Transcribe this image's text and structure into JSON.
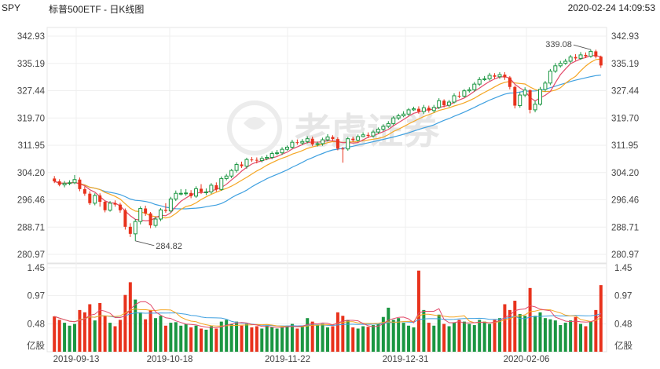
{
  "header": {
    "symbol": "SPY",
    "title": "标普500ETF - 日K线图",
    "timestamp": "2020-02-24 14:09:53"
  },
  "watermark": "老虎证券",
  "chart_data": {
    "type": "candlestick",
    "price_axis": {
      "ticks": [
        "342.93",
        "335.19",
        "327.44",
        "319.70",
        "311.95",
        "304.20",
        "296.46",
        "288.71",
        "280.97"
      ],
      "range": [
        280.97,
        342.93
      ]
    },
    "volume_axis": {
      "ticks": [
        "1.45",
        "0.97",
        "0.48"
      ],
      "unit": "亿股",
      "range": [
        0,
        1.45
      ]
    },
    "x_axis": {
      "labels": [
        "2019-09-13",
        "2019-10-18",
        "2019-11-22",
        "2019-12-31",
        "2020-02-06"
      ]
    },
    "annotations": {
      "high": "339.08",
      "low": "284.82"
    },
    "colors": {
      "up": "#1a9641",
      "down": "#e8321c",
      "ma5": "#e24a6a",
      "ma10": "#f5a623",
      "ma20": "#3fa0e0"
    },
    "candles": [
      [
        302.5,
        301.7,
        303.2,
        301.2,
        0.61
      ],
      [
        301.7,
        300.7,
        302.3,
        300.3,
        0.55
      ],
      [
        300.7,
        301.1,
        301.8,
        300.0,
        0.5
      ],
      [
        301.1,
        301.3,
        302.0,
        300.6,
        0.45
      ],
      [
        301.3,
        302.2,
        303.5,
        300.9,
        0.48
      ],
      [
        302.2,
        299.5,
        302.8,
        298.9,
        0.72
      ],
      [
        299.5,
        298.2,
        300.3,
        297.6,
        0.68
      ],
      [
        298.2,
        295.5,
        298.9,
        295.0,
        0.82
      ],
      [
        295.5,
        297.7,
        298.3,
        294.9,
        0.54
      ],
      [
        297.7,
        295.9,
        298.3,
        294.5,
        0.84
      ],
      [
        295.9,
        293.5,
        296.2,
        292.9,
        0.62
      ],
      [
        293.5,
        295.5,
        296.1,
        293.1,
        0.5
      ],
      [
        295.5,
        295.1,
        296.3,
        294.5,
        0.44
      ],
      [
        295.1,
        293.5,
        295.6,
        292.8,
        0.55
      ],
      [
        293.5,
        288.8,
        294.0,
        288.0,
        0.98
      ],
      [
        288.8,
        286.8,
        289.8,
        285.9,
        1.2
      ],
      [
        286.8,
        290.3,
        291.0,
        284.8,
        0.9
      ],
      [
        290.3,
        294.0,
        294.6,
        289.5,
        0.68
      ],
      [
        294.0,
        292.6,
        294.8,
        291.9,
        0.56
      ],
      [
        292.6,
        289.2,
        293.0,
        288.4,
        0.72
      ],
      [
        289.2,
        291.0,
        291.6,
        288.6,
        0.58
      ],
      [
        291.0,
        293.6,
        294.1,
        290.4,
        0.62
      ],
      [
        293.6,
        293.3,
        295.5,
        292.8,
        0.45
      ],
      [
        293.3,
        296.7,
        297.3,
        292.8,
        0.5
      ],
      [
        296.7,
        298.3,
        299.1,
        296.1,
        0.51
      ],
      [
        298.3,
        298.3,
        299.5,
        297.7,
        0.45
      ],
      [
        298.3,
        298.4,
        299.5,
        297.6,
        0.48
      ],
      [
        298.4,
        297.5,
        299.2,
        296.9,
        0.42
      ],
      [
        297.5,
        299.6,
        300.3,
        297.0,
        0.45
      ],
      [
        299.6,
        298.7,
        300.9,
        298.1,
        0.4
      ],
      [
        298.7,
        298.7,
        299.7,
        297.8,
        0.38
      ],
      [
        298.7,
        300.6,
        301.2,
        298.1,
        0.44
      ],
      [
        300.6,
        299.4,
        301.4,
        298.8,
        0.4
      ],
      [
        299.4,
        302.5,
        303.1,
        299.0,
        0.52
      ],
      [
        302.5,
        303.2,
        303.8,
        302.0,
        0.55
      ],
      [
        303.2,
        304.8,
        305.2,
        302.6,
        0.48
      ],
      [
        304.8,
        306.5,
        307.1,
        304.2,
        0.52
      ],
      [
        306.5,
        306.0,
        307.3,
        305.5,
        0.45
      ],
      [
        306.0,
        307.9,
        308.4,
        305.3,
        0.48
      ],
      [
        307.9,
        307.8,
        308.6,
        307.2,
        0.42
      ],
      [
        307.8,
        307.6,
        308.5,
        306.8,
        0.44
      ],
      [
        307.6,
        308.2,
        308.8,
        307.1,
        0.4
      ],
      [
        308.2,
        308.5,
        309.2,
        307.7,
        0.45
      ],
      [
        308.5,
        309.6,
        310.2,
        308.0,
        0.42
      ],
      [
        309.6,
        309.8,
        310.6,
        309.1,
        0.4
      ],
      [
        309.8,
        310.8,
        311.4,
        309.2,
        0.43
      ],
      [
        310.8,
        311.4,
        311.9,
        310.4,
        0.45
      ],
      [
        311.4,
        312.8,
        313.5,
        310.9,
        0.48
      ],
      [
        312.8,
        312.6,
        313.6,
        312.1,
        0.4
      ],
      [
        312.6,
        313.0,
        313.7,
        312.0,
        0.44
      ],
      [
        313.0,
        313.8,
        314.5,
        312.5,
        0.58
      ],
      [
        313.8,
        312.2,
        314.4,
        311.7,
        0.52
      ],
      [
        312.2,
        312.4,
        313.0,
        311.6,
        0.46
      ],
      [
        312.4,
        313.5,
        314.1,
        311.8,
        0.48
      ],
      [
        313.5,
        314.3,
        315.1,
        313.0,
        0.42
      ],
      [
        314.3,
        313.7,
        314.8,
        313.2,
        0.44
      ],
      [
        313.7,
        311.0,
        314.2,
        310.5,
        0.68
      ],
      [
        311.0,
        310.9,
        311.5,
        307.0,
        0.62
      ],
      [
        310.9,
        313.8,
        314.3,
        310.4,
        0.55
      ],
      [
        313.8,
        313.4,
        314.4,
        312.9,
        0.42
      ],
      [
        313.4,
        314.4,
        315.0,
        313.0,
        0.4
      ],
      [
        314.4,
        314.9,
        315.6,
        314.2,
        0.44
      ],
      [
        314.9,
        314.6,
        315.6,
        314.0,
        0.43
      ],
      [
        314.6,
        315.7,
        316.3,
        314.1,
        0.46
      ],
      [
        315.7,
        316.5,
        317.0,
        315.2,
        0.48
      ],
      [
        316.5,
        317.3,
        317.9,
        316.0,
        0.6
      ],
      [
        317.3,
        318.1,
        318.8,
        316.8,
        0.76
      ],
      [
        318.1,
        319.7,
        320.2,
        317.6,
        0.55
      ],
      [
        319.7,
        320.3,
        320.9,
        319.1,
        0.58
      ],
      [
        320.3,
        320.8,
        321.6,
        319.9,
        0.5
      ],
      [
        320.8,
        322.0,
        322.5,
        320.3,
        0.45
      ],
      [
        322.0,
        322.3,
        322.9,
        321.7,
        0.42
      ],
      [
        322.3,
        321.5,
        323.0,
        320.9,
        1.4
      ],
      [
        321.5,
        322.6,
        323.4,
        320.8,
        0.72
      ],
      [
        322.6,
        321.8,
        323.2,
        321.2,
        0.5
      ],
      [
        321.8,
        322.7,
        323.4,
        321.2,
        0.45
      ],
      [
        322.7,
        324.6,
        325.3,
        322.2,
        0.64
      ],
      [
        324.6,
        323.3,
        325.0,
        322.7,
        0.48
      ],
      [
        323.3,
        324.2,
        324.8,
        322.8,
        0.44
      ],
      [
        324.2,
        326.0,
        326.7,
        323.8,
        0.5
      ],
      [
        326.0,
        325.9,
        327.2,
        325.3,
        0.55
      ],
      [
        325.9,
        327.4,
        327.9,
        325.5,
        0.52
      ],
      [
        327.4,
        327.7,
        328.4,
        326.9,
        0.48
      ],
      [
        327.7,
        329.3,
        329.9,
        327.2,
        0.46
      ],
      [
        329.3,
        330.6,
        331.3,
        328.8,
        0.55
      ],
      [
        330.6,
        330.8,
        331.6,
        330.2,
        0.52
      ],
      [
        330.8,
        331.8,
        332.5,
        330.3,
        0.48
      ],
      [
        331.8,
        331.4,
        332.4,
        330.8,
        0.55
      ],
      [
        331.4,
        332.0,
        332.7,
        330.8,
        0.58
      ],
      [
        332.0,
        331.2,
        332.7,
        330.5,
        0.82
      ],
      [
        331.2,
        328.5,
        331.6,
        327.8,
        0.72
      ],
      [
        328.5,
        323.2,
        328.9,
        322.4,
        0.88
      ],
      [
        323.2,
        326.2,
        327.0,
        322.6,
        0.65
      ],
      [
        326.2,
        327.6,
        328.4,
        325.6,
        0.62
      ],
      [
        327.6,
        322.0,
        327.8,
        321.0,
        1.1
      ],
      [
        322.0,
        323.6,
        324.6,
        321.3,
        0.62
      ],
      [
        323.6,
        327.8,
        328.5,
        323.2,
        0.68
      ],
      [
        327.8,
        329.6,
        330.2,
        327.2,
        0.58
      ],
      [
        329.6,
        333.0,
        333.6,
        329.0,
        0.56
      ],
      [
        333.0,
        334.5,
        335.3,
        332.5,
        0.54
      ],
      [
        334.5,
        335.2,
        335.9,
        334.0,
        0.46
      ],
      [
        335.2,
        335.8,
        336.5,
        334.8,
        0.5
      ],
      [
        335.8,
        337.0,
        337.6,
        335.2,
        0.54
      ],
      [
        337.0,
        336.6,
        337.8,
        336.0,
        0.6
      ],
      [
        336.6,
        337.6,
        338.4,
        336.2,
        0.48
      ],
      [
        337.6,
        337.2,
        338.3,
        336.7,
        0.44
      ],
      [
        337.2,
        338.6,
        339.1,
        336.8,
        0.52
      ],
      [
        338.6,
        337.1,
        339.08,
        336.6,
        0.72
      ],
      [
        337.1,
        334.6,
        337.4,
        333.9,
        1.15
      ]
    ]
  }
}
